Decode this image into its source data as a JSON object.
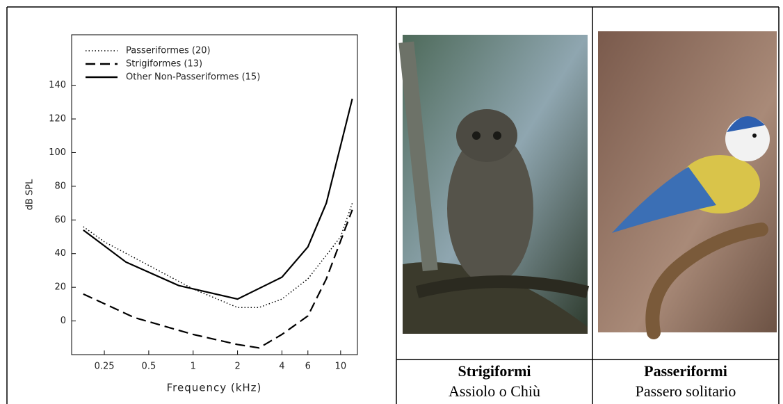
{
  "chart_data": {
    "type": "line",
    "x_label": "Frequency (kHz)",
    "y_label": "dB SPL",
    "x_log": true,
    "xlim": [
      0.15,
      13
    ],
    "ylim": [
      -20,
      170
    ],
    "xticks": [
      0.25,
      0.5,
      1,
      2,
      4,
      6,
      10
    ],
    "yticks": [
      0,
      20,
      40,
      60,
      80,
      100,
      120,
      140
    ],
    "legend": "upper left",
    "series": [
      {
        "name": "Passeriformes (20)",
        "color": "#000000",
        "style": "dotted",
        "x": [
          0.18,
          0.25,
          0.5,
          1,
          2,
          2.8,
          4,
          6,
          10,
          12
        ],
        "values": [
          56,
          47,
          33,
          19,
          8,
          8,
          13,
          25,
          50,
          70
        ]
      },
      {
        "name": "Strigiformes (13)",
        "color": "#000000",
        "style": "dashed",
        "x": [
          0.18,
          0.4,
          1,
          2,
          2.8,
          4,
          6,
          8,
          12
        ],
        "values": [
          16,
          2,
          -8,
          -14,
          -16,
          -8,
          3,
          25,
          66
        ]
      },
      {
        "name": "Other Non-Passeriformes (15)",
        "color": "#000000",
        "style": "solid",
        "x": [
          0.18,
          0.35,
          0.8,
          2,
          4,
          6,
          8,
          12
        ],
        "values": [
          54,
          35,
          21,
          13,
          26,
          44,
          70,
          132
        ]
      }
    ]
  },
  "photos": [
    {
      "group": "Strigiformi",
      "species": "Assiolo o Chiù"
    },
    {
      "group": "Passeriformi",
      "species": "Passero solitario"
    }
  ]
}
